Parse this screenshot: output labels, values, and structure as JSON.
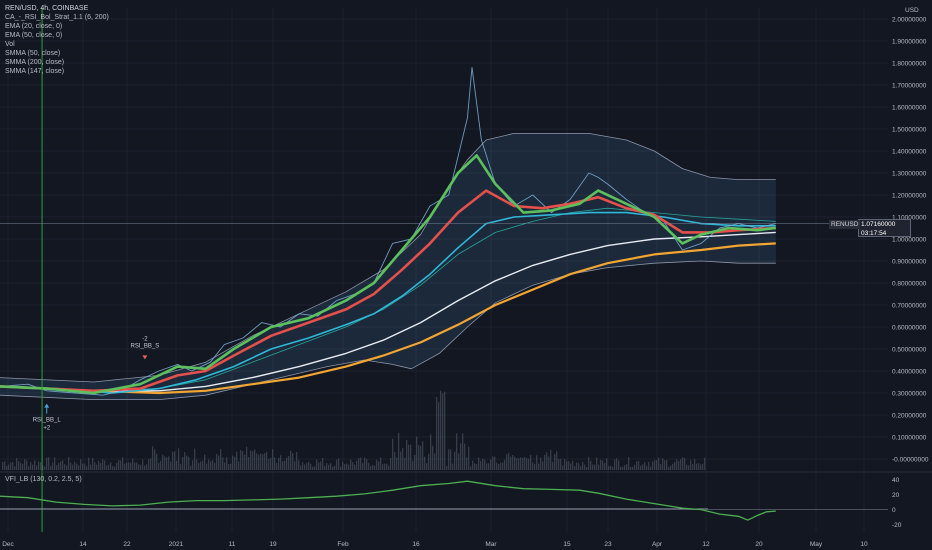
{
  "chart_data": {
    "type": "line",
    "title": "REN/USD, 4h, COINBASE",
    "currency": "USD",
    "symbol_tag": "RENUSD",
    "last_price": "1.07160000",
    "countdown": "03:17:54",
    "indicators": [
      "CA_-_RSI_Bol_Strat_1.1 (6, 200)",
      "EMA (20, close, 0)",
      "EMA (50, close, 0)",
      "Vol",
      "SMMA (50, close)",
      "SMMA (200, close)",
      "SMMA (147, close)"
    ],
    "x_tick_labels": [
      "Dec",
      "14",
      "22",
      "2021",
      "11",
      "19",
      "Feb",
      "16",
      "Mar",
      "15",
      "23",
      "Apr",
      "12",
      "20",
      "May",
      "10"
    ],
    "y_tick_labels": [
      "-0.00000000",
      "0.10000000",
      "0.20000000",
      "0.30000000",
      "0.40000000",
      "0.50000000",
      "0.60000000",
      "0.70000000",
      "0.80000000",
      "0.90000000",
      "1.00000000",
      "1.10000000",
      "1.20000000",
      "1.30000000",
      "1.40000000",
      "1.50000000",
      "1.60000000",
      "1.70000000",
      "1.80000000",
      "1.90000000",
      "2.00000000"
    ],
    "ylim": [
      -0.05,
      2.05
    ],
    "x_days_range": [
      0,
      190
    ],
    "series": [
      {
        "name": "price",
        "color": "#7fb2d9",
        "points": [
          [
            0,
            0.33
          ],
          [
            6,
            0.34
          ],
          [
            10,
            0.31
          ],
          [
            16,
            0.3
          ],
          [
            22,
            0.29
          ],
          [
            26,
            0.31
          ],
          [
            30,
            0.36
          ],
          [
            34,
            0.4
          ],
          [
            38,
            0.43
          ],
          [
            41,
            0.4
          ],
          [
            45,
            0.44
          ],
          [
            48,
            0.52
          ],
          [
            52,
            0.55
          ],
          [
            56,
            0.62
          ],
          [
            60,
            0.6
          ],
          [
            64,
            0.66
          ],
          [
            68,
            0.65
          ],
          [
            72,
            0.72
          ],
          [
            76,
            0.75
          ],
          [
            80,
            0.8
          ],
          [
            84,
            0.98
          ],
          [
            88,
            1.0
          ],
          [
            92,
            1.15
          ],
          [
            96,
            1.2
          ],
          [
            100,
            1.55
          ],
          [
            101,
            1.78
          ],
          [
            103,
            1.45
          ],
          [
            106,
            1.25
          ],
          [
            110,
            1.15
          ],
          [
            114,
            1.2
          ],
          [
            118,
            1.12
          ],
          [
            122,
            1.18
          ],
          [
            126,
            1.3
          ],
          [
            128,
            1.28
          ],
          [
            130,
            1.25
          ],
          [
            134,
            1.18
          ],
          [
            138,
            1.12
          ],
          [
            142,
            1.08
          ],
          [
            146,
            0.95
          ],
          [
            150,
            0.98
          ],
          [
            154,
            1.05
          ],
          [
            158,
            1.07
          ],
          [
            162,
            1.05
          ],
          [
            166,
            1.07
          ]
        ]
      },
      {
        "name": "ema-20",
        "color": "#5cc05c",
        "points": [
          [
            0,
            0.33
          ],
          [
            10,
            0.32
          ],
          [
            20,
            0.3
          ],
          [
            30,
            0.34
          ],
          [
            38,
            0.42
          ],
          [
            44,
            0.41
          ],
          [
            50,
            0.5
          ],
          [
            58,
            0.6
          ],
          [
            66,
            0.64
          ],
          [
            74,
            0.72
          ],
          [
            80,
            0.8
          ],
          [
            86,
            0.95
          ],
          [
            92,
            1.1
          ],
          [
            98,
            1.3
          ],
          [
            102,
            1.38
          ],
          [
            106,
            1.25
          ],
          [
            112,
            1.12
          ],
          [
            118,
            1.13
          ],
          [
            124,
            1.16
          ],
          [
            128,
            1.22
          ],
          [
            134,
            1.16
          ],
          [
            140,
            1.1
          ],
          [
            146,
            0.98
          ],
          [
            150,
            1.02
          ],
          [
            156,
            1.05
          ],
          [
            162,
            1.04
          ],
          [
            166,
            1.05
          ]
        ]
      },
      {
        "name": "ema-50",
        "color": "#e5504a",
        "points": [
          [
            0,
            0.33
          ],
          [
            10,
            0.32
          ],
          [
            20,
            0.31
          ],
          [
            30,
            0.32
          ],
          [
            38,
            0.38
          ],
          [
            44,
            0.4
          ],
          [
            50,
            0.47
          ],
          [
            58,
            0.56
          ],
          [
            66,
            0.62
          ],
          [
            74,
            0.68
          ],
          [
            80,
            0.75
          ],
          [
            86,
            0.86
          ],
          [
            92,
            0.98
          ],
          [
            98,
            1.12
          ],
          [
            104,
            1.22
          ],
          [
            110,
            1.15
          ],
          [
            116,
            1.14
          ],
          [
            122,
            1.16
          ],
          [
            128,
            1.19
          ],
          [
            134,
            1.14
          ],
          [
            140,
            1.11
          ],
          [
            146,
            1.03
          ],
          [
            152,
            1.03
          ],
          [
            158,
            1.04
          ],
          [
            166,
            1.05
          ]
        ]
      },
      {
        "name": "smma-50",
        "color": "#2fb8d8",
        "points": [
          [
            0,
            0.33
          ],
          [
            12,
            0.32
          ],
          [
            24,
            0.3
          ],
          [
            34,
            0.32
          ],
          [
            42,
            0.36
          ],
          [
            50,
            0.42
          ],
          [
            58,
            0.5
          ],
          [
            66,
            0.55
          ],
          [
            74,
            0.61
          ],
          [
            80,
            0.66
          ],
          [
            86,
            0.74
          ],
          [
            92,
            0.84
          ],
          [
            98,
            0.96
          ],
          [
            104,
            1.07
          ],
          [
            110,
            1.1
          ],
          [
            118,
            1.11
          ],
          [
            126,
            1.12
          ],
          [
            134,
            1.12
          ],
          [
            142,
            1.1
          ],
          [
            150,
            1.07
          ],
          [
            158,
            1.06
          ],
          [
            166,
            1.06
          ]
        ]
      },
      {
        "name": "smma-147",
        "color": "#e8ebf2",
        "points": [
          [
            0,
            0.33
          ],
          [
            20,
            0.31
          ],
          [
            34,
            0.31
          ],
          [
            44,
            0.33
          ],
          [
            54,
            0.37
          ],
          [
            64,
            0.42
          ],
          [
            74,
            0.48
          ],
          [
            82,
            0.54
          ],
          [
            90,
            0.62
          ],
          [
            98,
            0.72
          ],
          [
            106,
            0.81
          ],
          [
            114,
            0.88
          ],
          [
            122,
            0.93
          ],
          [
            130,
            0.97
          ],
          [
            140,
            1.0
          ],
          [
            150,
            1.01
          ],
          [
            158,
            1.02
          ],
          [
            166,
            1.03
          ]
        ]
      },
      {
        "name": "smma-200",
        "color": "#f2a531",
        "points": [
          [
            0,
            0.33
          ],
          [
            20,
            0.31
          ],
          [
            34,
            0.3
          ],
          [
            44,
            0.31
          ],
          [
            54,
            0.34
          ],
          [
            64,
            0.37
          ],
          [
            74,
            0.42
          ],
          [
            82,
            0.47
          ],
          [
            90,
            0.53
          ],
          [
            98,
            0.61
          ],
          [
            106,
            0.7
          ],
          [
            114,
            0.77
          ],
          [
            122,
            0.84
          ],
          [
            130,
            0.89
          ],
          [
            140,
            0.93
          ],
          [
            150,
            0.95
          ],
          [
            158,
            0.97
          ],
          [
            166,
            0.98
          ]
        ]
      },
      {
        "name": "bb-mid",
        "color": "#26a69a",
        "points": [
          [
            0,
            0.33
          ],
          [
            20,
            0.31
          ],
          [
            34,
            0.32
          ],
          [
            44,
            0.36
          ],
          [
            54,
            0.44
          ],
          [
            64,
            0.52
          ],
          [
            74,
            0.6
          ],
          [
            82,
            0.68
          ],
          [
            90,
            0.79
          ],
          [
            98,
            0.93
          ],
          [
            106,
            1.03
          ],
          [
            114,
            1.08
          ],
          [
            122,
            1.12
          ],
          [
            130,
            1.14
          ],
          [
            140,
            1.12
          ],
          [
            150,
            1.1
          ],
          [
            158,
            1.09
          ],
          [
            166,
            1.08
          ]
        ]
      },
      {
        "name": "bb-upper",
        "color": "#8c96a8",
        "points": [
          [
            0,
            0.37
          ],
          [
            20,
            0.35
          ],
          [
            34,
            0.38
          ],
          [
            44,
            0.44
          ],
          [
            54,
            0.56
          ],
          [
            64,
            0.66
          ],
          [
            74,
            0.76
          ],
          [
            82,
            0.86
          ],
          [
            90,
            1.02
          ],
          [
            96,
            1.24
          ],
          [
            100,
            1.36
          ],
          [
            104,
            1.45
          ],
          [
            110,
            1.48
          ],
          [
            118,
            1.48
          ],
          [
            126,
            1.48
          ],
          [
            134,
            1.45
          ],
          [
            140,
            1.4
          ],
          [
            146,
            1.32
          ],
          [
            152,
            1.28
          ],
          [
            158,
            1.27
          ],
          [
            166,
            1.27
          ]
        ]
      },
      {
        "name": "bb-lower",
        "color": "#8c96a8",
        "points": [
          [
            0,
            0.29
          ],
          [
            20,
            0.27
          ],
          [
            34,
            0.27
          ],
          [
            44,
            0.29
          ],
          [
            52,
            0.33
          ],
          [
            60,
            0.37
          ],
          [
            70,
            0.42
          ],
          [
            78,
            0.45
          ],
          [
            84,
            0.43
          ],
          [
            88,
            0.41
          ],
          [
            94,
            0.48
          ],
          [
            100,
            0.6
          ],
          [
            106,
            0.71
          ],
          [
            114,
            0.79
          ],
          [
            122,
            0.84
          ],
          [
            130,
            0.87
          ],
          [
            140,
            0.89
          ],
          [
            150,
            0.9
          ],
          [
            158,
            0.89
          ],
          [
            166,
            0.89
          ]
        ]
      }
    ],
    "annotations": [
      {
        "text": "RSI_BB_L",
        "sub": "+2",
        "x": 10,
        "y": 0.27
      },
      {
        "text": "RSI_BB_S",
        "sub": "-2",
        "x": 31,
        "y": 0.48
      }
    ],
    "vertical_marker_x": 9,
    "vfi": {
      "label": "VFI_LB (130, 0.2, 2.5, 5)",
      "color": "#4caf50",
      "tick_labels": [
        "40",
        "20",
        "0",
        "-20"
      ],
      "ylim": [
        -30,
        45
      ],
      "zero_line": 0,
      "signal_line": 1,
      "points": [
        [
          0,
          18
        ],
        [
          6,
          16
        ],
        [
          12,
          10
        ],
        [
          18,
          7
        ],
        [
          24,
          5
        ],
        [
          30,
          6
        ],
        [
          36,
          10
        ],
        [
          42,
          12
        ],
        [
          48,
          12
        ],
        [
          54,
          13
        ],
        [
          60,
          14
        ],
        [
          66,
          16
        ],
        [
          72,
          18
        ],
        [
          78,
          21
        ],
        [
          84,
          26
        ],
        [
          90,
          32
        ],
        [
          96,
          35
        ],
        [
          100,
          38
        ],
        [
          106,
          32
        ],
        [
          112,
          28
        ],
        [
          118,
          27
        ],
        [
          124,
          26
        ],
        [
          128,
          22
        ],
        [
          134,
          14
        ],
        [
          140,
          8
        ],
        [
          146,
          2
        ],
        [
          150,
          0
        ],
        [
          154,
          -6
        ],
        [
          158,
          -9
        ],
        [
          160,
          -14
        ],
        [
          162,
          -8
        ],
        [
          164,
          -3
        ],
        [
          166,
          -2
        ]
      ]
    }
  }
}
